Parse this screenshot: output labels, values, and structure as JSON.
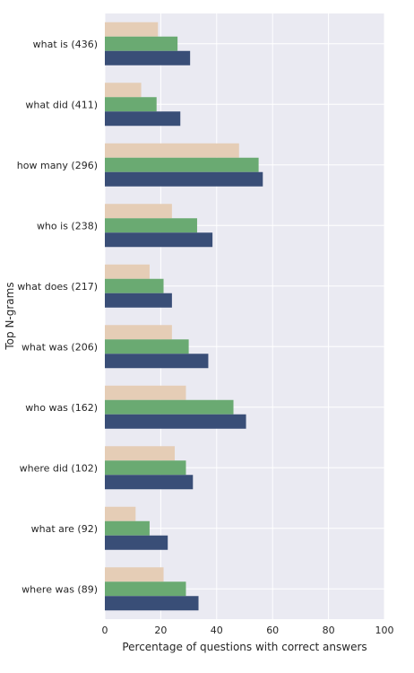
{
  "chart_data": {
    "type": "bar",
    "orientation": "horizontal",
    "categories": [
      "what is (436)",
      "what did (411)",
      "how many (296)",
      "who is (238)",
      "what does (217)",
      "what was (206)",
      "who was (162)",
      "where did (102)",
      "what are (92)",
      "where was (89)"
    ],
    "series": [
      {
        "values": [
          19,
          13,
          48,
          24,
          16,
          24,
          29,
          25,
          11,
          21
        ],
        "color": "#e5cdb6"
      },
      {
        "values": [
          26,
          18.5,
          55,
          33,
          21,
          30,
          46,
          29,
          16,
          29
        ],
        "color": "#6aaa72"
      },
      {
        "values": [
          30.5,
          27,
          56.5,
          38.5,
          24,
          37,
          50.5,
          31.5,
          22.5,
          33.5
        ],
        "color": "#394e77"
      }
    ],
    "xlabel": "Percentage of questions with correct answers",
    "ylabel": "Top N-grams",
    "xlim": [
      0,
      100
    ],
    "xticks": [
      "0",
      "20",
      "40",
      "60",
      "80",
      "100"
    ],
    "grid": true,
    "background": "#eaeaf2"
  }
}
